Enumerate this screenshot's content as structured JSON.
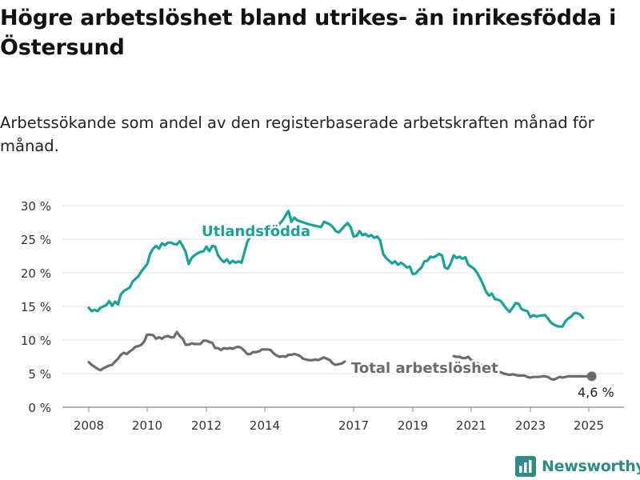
{
  "title": "Högre arbetslöshet bland utrikes- än inrikesfödda i Östersund",
  "subtitle": "Arbetssökande som andel av den registerbaserade arbetskraften månad för månad.",
  "brand": {
    "name": "Newsworthy",
    "icon": "bar-chart-icon",
    "color": "#2e8b85"
  },
  "chart_data": {
    "type": "line",
    "ylim": [
      0,
      30
    ],
    "yticks": [
      0,
      5,
      10,
      15,
      20,
      25,
      30
    ],
    "ytick_labels": [
      "0 %",
      "5 %",
      "10 %",
      "15 %",
      "20 %",
      "25 %",
      "30 %"
    ],
    "xlim": [
      2007.6,
      2025.5
    ],
    "xticks": [
      2008,
      2010,
      2012,
      2014,
      2017,
      2019,
      2021,
      2023,
      2025
    ],
    "xtick_labels": [
      "2008",
      "2010",
      "2012",
      "2014",
      "2017",
      "2019",
      "2021",
      "2023",
      "2025"
    ],
    "grid": true,
    "series": [
      {
        "name": "Utlandsfödda",
        "color": "#17a398",
        "points": [
          [
            2008.0,
            14.8
          ],
          [
            2008.1,
            14.3
          ],
          [
            2008.2,
            14.5
          ],
          [
            2008.3,
            14.3
          ],
          [
            2008.4,
            14.8
          ],
          [
            2008.5,
            15.0
          ],
          [
            2008.6,
            15.2
          ],
          [
            2008.7,
            15.8
          ],
          [
            2008.8,
            15.1
          ],
          [
            2008.9,
            15.7
          ],
          [
            2009.0,
            15.3
          ],
          [
            2009.1,
            16.8
          ],
          [
            2009.2,
            17.3
          ],
          [
            2009.4,
            17.8
          ],
          [
            2009.5,
            18.7
          ],
          [
            2009.7,
            19.5
          ],
          [
            2009.8,
            20.2
          ],
          [
            2010.0,
            21.3
          ],
          [
            2010.1,
            22.8
          ],
          [
            2010.2,
            23.6
          ],
          [
            2010.3,
            24.0
          ],
          [
            2010.4,
            23.6
          ],
          [
            2010.5,
            24.4
          ],
          [
            2010.6,
            24.1
          ],
          [
            2010.7,
            24.5
          ],
          [
            2010.8,
            24.5
          ],
          [
            2010.9,
            24.3
          ],
          [
            2011.0,
            24.2
          ],
          [
            2011.1,
            24.7
          ],
          [
            2011.2,
            24.0
          ],
          [
            2011.3,
            23.1
          ],
          [
            2011.4,
            21.3
          ],
          [
            2011.5,
            22.2
          ],
          [
            2011.6,
            22.6
          ],
          [
            2011.7,
            22.9
          ],
          [
            2011.8,
            23.1
          ],
          [
            2011.9,
            23.2
          ],
          [
            2012.0,
            23.9
          ],
          [
            2012.1,
            23.2
          ],
          [
            2012.2,
            24.0
          ],
          [
            2012.3,
            23.9
          ],
          [
            2012.4,
            22.6
          ],
          [
            2012.5,
            22.0
          ],
          [
            2012.6,
            21.6
          ],
          [
            2012.7,
            22.0
          ],
          [
            2012.8,
            21.4
          ],
          [
            2012.9,
            21.8
          ],
          [
            2013.0,
            21.5
          ],
          [
            2013.1,
            21.7
          ],
          [
            2013.2,
            21.5
          ],
          [
            2013.3,
            23.0
          ],
          [
            2013.4,
            24.6
          ],
          [
            2013.5,
            25.4
          ],
          [
            2013.6,
            25.6
          ],
          [
            2013.8,
            26.3
          ],
          [
            2013.9,
            25.8
          ],
          [
            2014.0,
            26.5
          ],
          [
            2014.2,
            27.2
          ],
          [
            2014.4,
            26.8
          ],
          [
            2014.6,
            27.8
          ],
          [
            2014.8,
            29.2
          ],
          [
            2014.9,
            27.6
          ],
          [
            2015.0,
            28.2
          ],
          [
            2015.1,
            27.8
          ],
          [
            2015.3,
            27.5
          ],
          [
            2015.5,
            27.2
          ],
          [
            2015.7,
            27.0
          ],
          [
            2015.9,
            26.8
          ],
          [
            2016.0,
            27.6
          ],
          [
            2016.2,
            27.2
          ],
          [
            2016.3,
            26.8
          ],
          [
            2016.4,
            26.2
          ],
          [
            2016.5,
            26.0
          ],
          [
            2016.6,
            26.5
          ],
          [
            2016.7,
            27.0
          ],
          [
            2016.8,
            27.4
          ],
          [
            2016.9,
            26.8
          ],
          [
            2017.0,
            25.4
          ],
          [
            2017.1,
            25.5
          ],
          [
            2017.2,
            26.2
          ],
          [
            2017.3,
            25.6
          ],
          [
            2017.4,
            25.8
          ],
          [
            2017.5,
            25.4
          ],
          [
            2017.6,
            25.6
          ],
          [
            2017.7,
            25.2
          ],
          [
            2017.8,
            25.4
          ],
          [
            2017.9,
            24.8
          ],
          [
            2018.0,
            22.8
          ],
          [
            2018.1,
            22.2
          ],
          [
            2018.2,
            21.8
          ],
          [
            2018.3,
            21.4
          ],
          [
            2018.4,
            21.7
          ],
          [
            2018.5,
            21.2
          ],
          [
            2018.6,
            21.5
          ],
          [
            2018.7,
            21.2
          ],
          [
            2018.8,
            20.8
          ],
          [
            2018.9,
            20.9
          ],
          [
            2019.0,
            19.8
          ],
          [
            2019.1,
            19.9
          ],
          [
            2019.2,
            20.4
          ],
          [
            2019.3,
            20.8
          ],
          [
            2019.4,
            21.7
          ],
          [
            2019.5,
            21.8
          ],
          [
            2019.6,
            22.4
          ],
          [
            2019.7,
            22.3
          ],
          [
            2019.8,
            22.5
          ],
          [
            2019.9,
            22.8
          ],
          [
            2020.0,
            22.6
          ],
          [
            2020.1,
            20.8
          ],
          [
            2020.2,
            20.6
          ],
          [
            2020.3,
            21.4
          ],
          [
            2020.4,
            22.6
          ],
          [
            2020.5,
            22.2
          ],
          [
            2020.6,
            22.4
          ],
          [
            2020.7,
            22.1
          ],
          [
            2020.8,
            22.3
          ],
          [
            2020.9,
            21.2
          ],
          [
            2021.0,
            20.9
          ],
          [
            2021.1,
            20.6
          ],
          [
            2021.2,
            20.0
          ],
          [
            2021.3,
            19.2
          ],
          [
            2021.4,
            18.3
          ],
          [
            2021.5,
            17.2
          ],
          [
            2021.6,
            16.6
          ],
          [
            2021.7,
            16.9
          ],
          [
            2021.8,
            16.1
          ],
          [
            2021.9,
            16.0
          ],
          [
            2022.0,
            15.8
          ],
          [
            2022.1,
            15.2
          ],
          [
            2022.2,
            14.6
          ],
          [
            2022.3,
            14.2
          ],
          [
            2022.4,
            14.8
          ],
          [
            2022.5,
            15.5
          ],
          [
            2022.6,
            15.4
          ],
          [
            2022.7,
            14.6
          ],
          [
            2022.8,
            14.4
          ],
          [
            2022.9,
            14.3
          ],
          [
            2023.0,
            13.4
          ],
          [
            2023.1,
            13.7
          ],
          [
            2023.2,
            13.5
          ],
          [
            2023.3,
            13.6
          ],
          [
            2023.5,
            13.7
          ],
          [
            2023.6,
            13.2
          ],
          [
            2023.7,
            12.6
          ],
          [
            2023.8,
            12.3
          ],
          [
            2023.9,
            12.1
          ],
          [
            2024.0,
            12.0
          ],
          [
            2024.1,
            12.0
          ],
          [
            2024.2,
            12.8
          ],
          [
            2024.3,
            13.2
          ],
          [
            2024.4,
            13.5
          ],
          [
            2024.5,
            14.0
          ],
          [
            2024.6,
            14.0
          ],
          [
            2024.7,
            13.8
          ],
          [
            2024.8,
            13.3
          ]
        ]
      },
      {
        "name": "Total arbetslöshet",
        "color": "#6b6b73",
        "points": [
          [
            2008.0,
            6.7
          ],
          [
            2008.1,
            6.3
          ],
          [
            2008.2,
            6.0
          ],
          [
            2008.3,
            5.7
          ],
          [
            2008.4,
            5.5
          ],
          [
            2008.5,
            5.8
          ],
          [
            2008.6,
            6.0
          ],
          [
            2008.7,
            6.2
          ],
          [
            2008.8,
            6.3
          ],
          [
            2008.9,
            6.8
          ],
          [
            2009.0,
            7.2
          ],
          [
            2009.1,
            7.8
          ],
          [
            2009.2,
            8.1
          ],
          [
            2009.3,
            7.9
          ],
          [
            2009.4,
            8.3
          ],
          [
            2009.5,
            8.6
          ],
          [
            2009.6,
            9.0
          ],
          [
            2009.7,
            9.1
          ],
          [
            2009.8,
            9.3
          ],
          [
            2009.9,
            9.8
          ],
          [
            2010.0,
            10.8
          ],
          [
            2010.1,
            10.8
          ],
          [
            2010.2,
            10.7
          ],
          [
            2010.3,
            10.2
          ],
          [
            2010.4,
            10.4
          ],
          [
            2010.5,
            10.2
          ],
          [
            2010.6,
            10.5
          ],
          [
            2010.7,
            10.6
          ],
          [
            2010.8,
            10.4
          ],
          [
            2010.9,
            10.4
          ],
          [
            2011.0,
            11.2
          ],
          [
            2011.1,
            10.6
          ],
          [
            2011.2,
            10.2
          ],
          [
            2011.3,
            9.3
          ],
          [
            2011.4,
            9.3
          ],
          [
            2011.5,
            9.5
          ],
          [
            2011.6,
            9.4
          ],
          [
            2011.7,
            9.4
          ],
          [
            2011.8,
            9.4
          ],
          [
            2011.9,
            9.9
          ],
          [
            2012.0,
            9.9
          ],
          [
            2012.1,
            9.7
          ],
          [
            2012.2,
            9.6
          ],
          [
            2012.3,
            8.8
          ],
          [
            2012.4,
            8.8
          ],
          [
            2012.5,
            8.5
          ],
          [
            2012.6,
            8.8
          ],
          [
            2012.7,
            8.7
          ],
          [
            2012.8,
            8.8
          ],
          [
            2012.9,
            8.7
          ],
          [
            2013.0,
            8.9
          ],
          [
            2013.1,
            9.0
          ],
          [
            2013.2,
            8.8
          ],
          [
            2013.3,
            8.4
          ],
          [
            2013.4,
            7.9
          ],
          [
            2013.5,
            7.9
          ],
          [
            2013.6,
            8.2
          ],
          [
            2013.7,
            8.2
          ],
          [
            2013.8,
            8.3
          ],
          [
            2013.9,
            8.6
          ],
          [
            2014.0,
            8.6
          ],
          [
            2014.1,
            8.6
          ],
          [
            2014.2,
            8.5
          ],
          [
            2014.3,
            8.0
          ],
          [
            2014.4,
            7.7
          ],
          [
            2014.5,
            7.5
          ],
          [
            2014.6,
            7.6
          ],
          [
            2014.7,
            7.5
          ],
          [
            2014.8,
            7.8
          ],
          [
            2014.9,
            7.8
          ],
          [
            2015.0,
            7.9
          ],
          [
            2015.1,
            7.8
          ],
          [
            2015.2,
            7.6
          ],
          [
            2015.3,
            7.2
          ],
          [
            2015.4,
            7.1
          ],
          [
            2015.5,
            7.0
          ],
          [
            2015.6,
            7.0
          ],
          [
            2015.7,
            7.1
          ],
          [
            2015.8,
            7.0
          ],
          [
            2015.9,
            7.2
          ],
          [
            2016.0,
            7.4
          ],
          [
            2016.1,
            7.2
          ],
          [
            2016.2,
            7.0
          ],
          [
            2016.3,
            6.5
          ],
          [
            2016.4,
            6.3
          ],
          [
            2016.5,
            6.4
          ],
          [
            2016.6,
            6.5
          ],
          [
            2016.7,
            6.8
          ],
          [
            2020.4,
            7.6
          ],
          [
            2020.5,
            7.5
          ],
          [
            2020.6,
            7.5
          ],
          [
            2020.7,
            7.3
          ],
          [
            2020.8,
            7.3
          ],
          [
            2020.9,
            7.5
          ],
          [
            2021.0,
            7.0
          ],
          [
            2021.1,
            6.8
          ],
          [
            2021.2,
            6.6
          ],
          [
            2021.3,
            6.3
          ],
          [
            2021.4,
            6.2
          ],
          [
            2021.5,
            6.0
          ],
          [
            2021.6,
            5.8
          ],
          [
            2021.7,
            5.5
          ],
          [
            2021.8,
            5.3
          ],
          [
            2021.9,
            5.3
          ],
          [
            2022.0,
            5.2
          ],
          [
            2022.1,
            5.0
          ],
          [
            2022.2,
            4.9
          ],
          [
            2022.3,
            4.8
          ],
          [
            2022.4,
            4.9
          ],
          [
            2022.5,
            4.8
          ],
          [
            2022.6,
            4.7
          ],
          [
            2022.7,
            4.7
          ],
          [
            2022.8,
            4.7
          ],
          [
            2022.9,
            4.5
          ],
          [
            2023.0,
            4.4
          ],
          [
            2023.1,
            4.5
          ],
          [
            2023.2,
            4.5
          ],
          [
            2023.3,
            4.5
          ],
          [
            2023.4,
            4.6
          ],
          [
            2023.5,
            4.6
          ],
          [
            2023.6,
            4.5
          ],
          [
            2023.7,
            4.2
          ],
          [
            2023.8,
            4.1
          ],
          [
            2023.9,
            4.3
          ],
          [
            2024.0,
            4.5
          ],
          [
            2024.1,
            4.4
          ],
          [
            2024.2,
            4.5
          ],
          [
            2024.3,
            4.6
          ],
          [
            2024.4,
            4.6
          ],
          [
            2024.5,
            4.6
          ],
          [
            2024.6,
            4.6
          ],
          [
            2024.7,
            4.6
          ],
          [
            2024.8,
            4.6
          ],
          [
            2025.1,
            4.6
          ]
        ]
      }
    ],
    "annotations": {
      "utlandsfodda_label": "Utlandsfödda",
      "total_label": "Total arbetslöshet",
      "last_value_label": "4,6 %",
      "last_value": 4.6
    }
  }
}
